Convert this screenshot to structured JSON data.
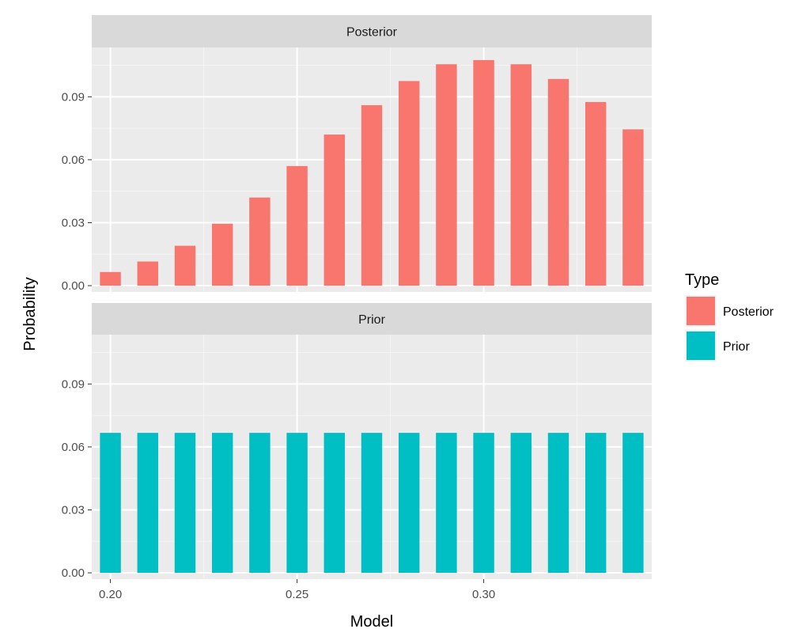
{
  "chart_data": {
    "type": "bar",
    "x": [
      0.2,
      0.21,
      0.22,
      0.23,
      0.24,
      0.25,
      0.26,
      0.27,
      0.28,
      0.29,
      0.3,
      0.31,
      0.32,
      0.33,
      0.34
    ],
    "xlim": [
      0.195,
      0.345
    ],
    "xticks": [
      0.2,
      0.25,
      0.3
    ],
    "xtick_labels": [
      "0.20",
      "0.25",
      "0.30"
    ],
    "xlabel": "Model",
    "ylabel": "Probability",
    "ylim": [
      -0.003,
      0.1135
    ],
    "yticks": [
      0.0,
      0.03,
      0.06,
      0.09
    ],
    "ytick_labels": [
      "0.00",
      "0.03",
      "0.06",
      "0.09"
    ],
    "grid": true,
    "facets": [
      {
        "label": "Posterior",
        "series": "Posterior",
        "values": [
          0.0065,
          0.0115,
          0.019,
          0.0295,
          0.042,
          0.057,
          0.072,
          0.086,
          0.0975,
          0.1055,
          0.1075,
          0.1055,
          0.0985,
          0.0875,
          0.0745
        ]
      },
      {
        "label": "Prior",
        "series": "Prior",
        "values": [
          0.0667,
          0.0667,
          0.0667,
          0.0667,
          0.0667,
          0.0667,
          0.0667,
          0.0667,
          0.0667,
          0.0667,
          0.0667,
          0.0667,
          0.0667,
          0.0667,
          0.0667
        ]
      }
    ],
    "legend": {
      "title": "Type",
      "placement": "right",
      "entries": [
        {
          "name": "Posterior",
          "color": "#F8766D"
        },
        {
          "name": "Prior",
          "color": "#00BFC4"
        }
      ]
    }
  }
}
